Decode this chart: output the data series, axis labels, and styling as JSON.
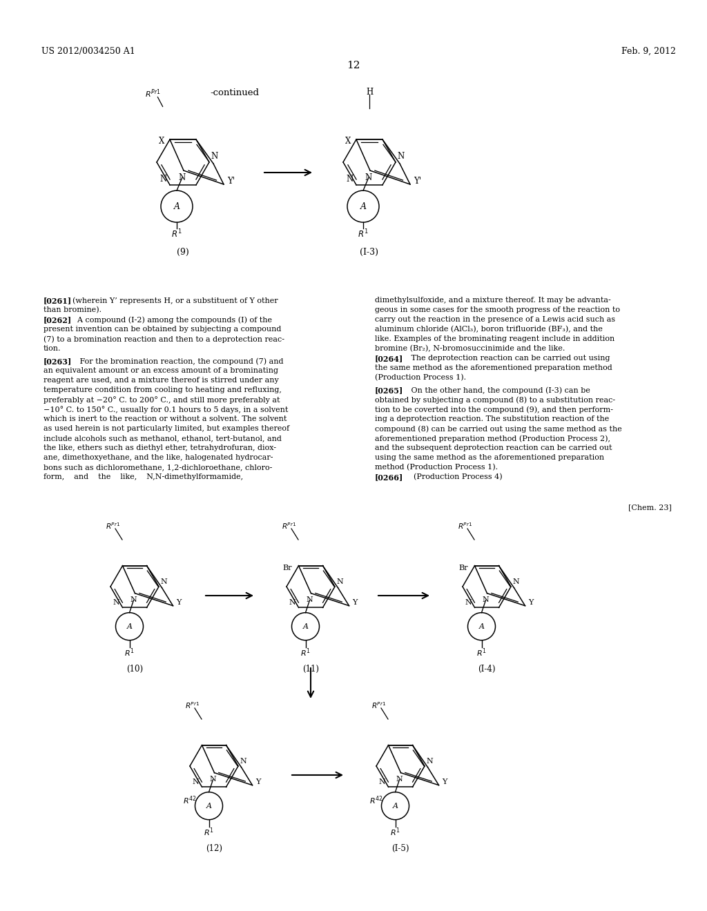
{
  "background_color": "#ffffff",
  "page_number": "12",
  "header_left": "US 2012/0034250 A1",
  "header_right": "Feb. 9, 2012",
  "continued_label": "-continued",
  "chem23_label": "[Chem. 23]",
  "para_text": [
    {
      "tag": "[0261]",
      "text": "    (wherein Y’ represents H, or a substituent of Y other than bromine)."
    },
    {
      "tag": "[0262]",
      "text": "    A compound (I-2) among the compounds (I) of the present invention can be obtained by subjecting a compound (7) to a bromination reaction and then to a deprotection reaction."
    },
    {
      "tag": "[0263]",
      "text": "    For the bromination reaction, the compound (7) and an equivalent amount or an excess amount of a brominating reagent are used, and a mixture thereof is stirred under any temperature condition from cooling to heating and refluxing, preferably at −20° C. to 200° C., and still more preferably at −10° C. to 150° C., usually for 0.1 hours to 5 days, in a solvent which is inert to the reaction or without a solvent. The solvent as used herein is not particularly limited, but examples thereof include alcohols such as methanol, ethanol, tert-butanol, and the like, ethers such as diethyl ether, tetrahydrofuran, dioxane, dimethoxyethane, and the like, halogenated hydrocarbons such as dichloromethane, 1,2-dichloroethane, chloroform,    and    the    like,    N,N-dimethylformamide,"
    },
    {
      "tag": "",
      "text": "dimethylsulfoxide, and a mixture thereof. It may be advantageous in some cases for the smooth progress of the reaction to carry out the reaction in the presence of a Lewis acid such as aluminum chloride (AlCl₃), boron trifluoride (BF₃), and the like. Examples of the brominating reagent include in addition bromine (Br₂), N-bromosuccinimide and the like."
    },
    {
      "tag": "[0264]",
      "text": "    The deprotection reaction can be carried out using the same method as the aforementioned preparation method (Production Process 1)."
    },
    {
      "tag": "[0265]",
      "text": "    On the other hand, the compound (I-3) can be obtained by subjecting a compound (8) to a substitution reaction to be coverted into the compound (9), and then performing a deprotection reaction. The substitution reaction of the compound (8) can be carried out using the same method as the aforementioned preparation method (Production Process 2), and the subsequent deprotection reaction can be carried out using the same method as the aforementioned preparation method (Production Process 1)."
    },
    {
      "tag": "[0266]",
      "text": "    (Production Process 4)"
    }
  ]
}
